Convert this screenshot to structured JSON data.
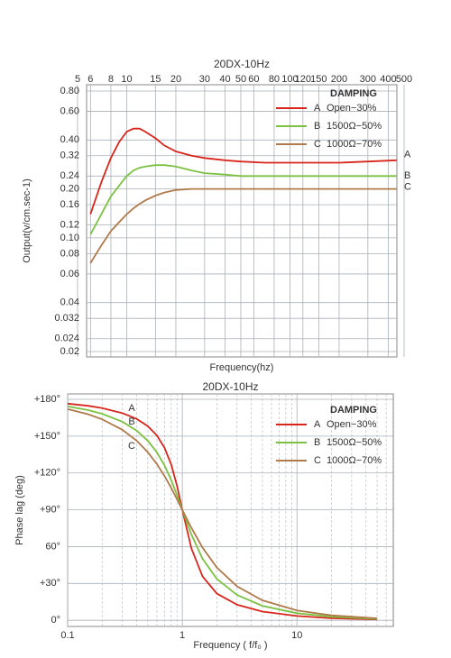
{
  "chart_data": [
    {
      "type": "line",
      "title": "20DX-10Hz",
      "x_label": "Frequency(hz)",
      "y_label": "Output(v/cm.sec-1)",
      "xscale": "log",
      "yscale": "log",
      "grid": true,
      "legend_title": "DAMPING",
      "legend_position": "upper-right",
      "xlim": [
        5,
        500
      ],
      "xticks": [
        5,
        6,
        8,
        10,
        15,
        20,
        30,
        40,
        50,
        60,
        80,
        100,
        120,
        150,
        200,
        300,
        400,
        500
      ],
      "ylim": [
        0.02,
        0.8
      ],
      "yticks": [
        0.02,
        0.024,
        0.032,
        0.04,
        0.06,
        0.08,
        {
          "value": 0.1,
          "label": "0.10"
        },
        0.12,
        0.16,
        {
          "value": 0.2,
          "label": "0.20"
        },
        0.24,
        0.32,
        {
          "value": 0.4,
          "label": "0.40"
        },
        {
          "value": 0.6,
          "label": "0.60"
        },
        {
          "value": 0.8,
          "label": "0.80"
        }
      ],
      "x": [
        6,
        7,
        8,
        9,
        10,
        11,
        12,
        13,
        15,
        17,
        20,
        25,
        30,
        40,
        50,
        70,
        100,
        150,
        200,
        300,
        450
      ],
      "series": [
        {
          "label": "A",
          "name": "Open−30%",
          "color": "#d9261c",
          "values": [
            0.14,
            0.22,
            0.31,
            0.39,
            0.45,
            0.47,
            0.47,
            0.45,
            0.41,
            0.37,
            0.34,
            0.32,
            0.31,
            0.3,
            0.295,
            0.29,
            0.29,
            0.29,
            0.29,
            0.295,
            0.3
          ]
        },
        {
          "label": "B",
          "name": "1500Ω−50%",
          "color": "#7cc242",
          "values": [
            0.105,
            0.14,
            0.18,
            0.21,
            0.24,
            0.26,
            0.27,
            0.275,
            0.28,
            0.28,
            0.275,
            0.26,
            0.25,
            0.245,
            0.24,
            0.24,
            0.24,
            0.24,
            0.24,
            0.24,
            0.24
          ]
        },
        {
          "label": "C",
          "name": "1000Ω−70%",
          "color": "#b07a4a",
          "values": [
            0.07,
            0.09,
            0.11,
            0.125,
            0.14,
            0.152,
            0.162,
            0.17,
            0.182,
            0.19,
            0.197,
            0.2,
            0.2,
            0.2,
            0.2,
            0.2,
            0.2,
            0.2,
            0.2,
            0.2,
            0.2
          ]
        }
      ]
    },
    {
      "type": "line",
      "title": "20DX-10Hz",
      "x_label": "Frequency  ( f/f₀ )",
      "y_label": "Phase lag (deg)",
      "xscale": "log",
      "yscale": "linear",
      "grid": true,
      "legend_title": "DAMPING",
      "legend_position": "upper-right",
      "xlim": [
        0.1,
        80
      ],
      "xticks": [
        0.1,
        1,
        10
      ],
      "minor_xticks": [
        0.2,
        0.3,
        0.4,
        0.5,
        0.6,
        0.7,
        0.8,
        0.9,
        2,
        3,
        4,
        5,
        6,
        7,
        8,
        9,
        20,
        30,
        40,
        50,
        60,
        70
      ],
      "ylim": [
        -5,
        180
      ],
      "yticks": [
        {
          "value": 0,
          "label": "0°"
        },
        {
          "value": 30,
          "label": "+30°"
        },
        {
          "value": 60,
          "label": "60°"
        },
        {
          "value": 90,
          "label": "+90°"
        },
        {
          "value": 120,
          "label": "+120°"
        },
        {
          "value": 150,
          "label": "+150°"
        },
        {
          "value": 180,
          "label": "+180°"
        }
      ],
      "x": [
        0.1,
        0.15,
        0.2,
        0.3,
        0.4,
        0.5,
        0.6,
        0.7,
        0.8,
        0.9,
        1,
        1.2,
        1.5,
        2,
        3,
        5,
        10,
        20,
        50
      ],
      "series": [
        {
          "label": "A",
          "name": "Open−30%",
          "color": "#d9261c",
          "values": [
            176.5,
            174.7,
            172.9,
            168.8,
            164.1,
            158.2,
            150.6,
            140.5,
            126.9,
            109.4,
            90,
            58.6,
            35.8,
            21.8,
            12.7,
            7.1,
            3.5,
            1.7,
            0.7
          ]
        },
        {
          "label": "B",
          "name": "1500Ω−50%",
          "color": "#7cc242",
          "values": [
            174.2,
            171.3,
            168.2,
            161.8,
            154.5,
            146.3,
            136.8,
            126.1,
            114.2,
            101.9,
            90,
            69.9,
            50.2,
            33.7,
            20.6,
            11.8,
            5.8,
            2.9,
            1.1
          ]
        },
        {
          "label": "C",
          "name": "1000Ω−70%",
          "color": "#b07a4a",
          "values": [
            172,
            167.9,
            163.7,
            155.2,
            146.3,
            137,
            127.3,
            117.5,
            107.8,
            98.6,
            90,
            75.3,
            59.2,
            43,
            27.7,
            16.3,
            8,
            4,
            1.6
          ]
        }
      ]
    }
  ]
}
